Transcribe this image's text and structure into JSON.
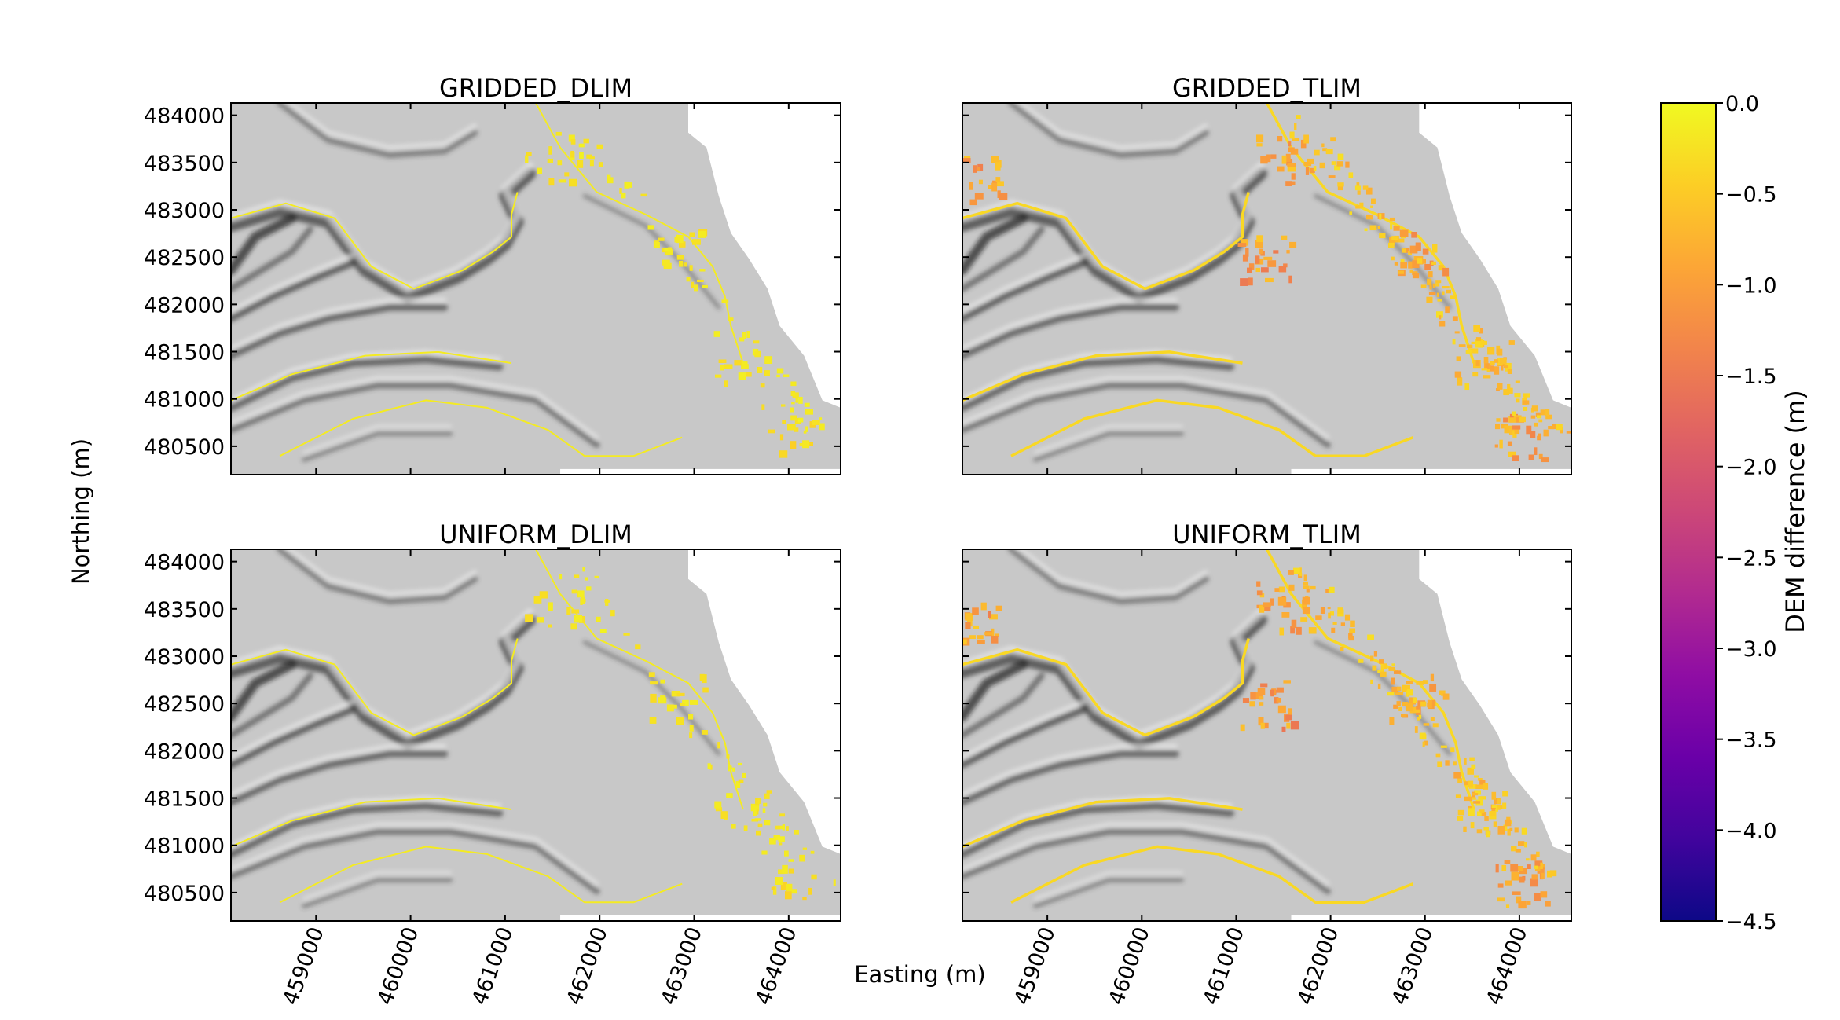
{
  "figure": {
    "xlabel": "Easting (m)",
    "ylabel": "Northing (m)",
    "colorbar": {
      "label": "DEM difference (m)",
      "range": [
        -4.5,
        0.0
      ],
      "ticks": [
        0.0,
        -0.5,
        -1.0,
        -1.5,
        -2.0,
        -2.5,
        -3.0,
        -3.5,
        -4.0,
        -4.5
      ],
      "tick_labels": [
        "0.0",
        "−0.5",
        "−1.0",
        "−1.5",
        "−2.0",
        "−2.5",
        "−3.0",
        "−3.5",
        "−4.0",
        "−4.5"
      ],
      "colormap": "plasma",
      "colors": [
        "#0d0887",
        "#41049d",
        "#6a00a8",
        "#8f0da4",
        "#b12a90",
        "#cc4778",
        "#e16462",
        "#f2844b",
        "#fca636",
        "#fcce25",
        "#f0f921"
      ]
    },
    "hillshade": {
      "background": "#c8c8c8",
      "dark_valley": "#3c3c3c",
      "no_data": "#ffffff"
    }
  },
  "chart_data": [
    {
      "type": "heatmap",
      "title": "GRIDDED_DLIM",
      "xlim": [
        458100,
        464550
      ],
      "ylim": [
        480200,
        484130
      ],
      "xticks": [
        459000,
        460000,
        461000,
        462000,
        463000,
        464000
      ],
      "yticks": [
        480500,
        481000,
        481500,
        482000,
        482500,
        483000,
        483500,
        484000
      ],
      "xtick_labels": [
        "459000",
        "460000",
        "461000",
        "462000",
        "463000",
        "464000"
      ],
      "ytick_labels": [
        "480500",
        "481000",
        "481500",
        "482000",
        "482500",
        "483000",
        "483500",
        "484000"
      ],
      "values": "DEM difference (m) over hillshade; mostly 0.0 to -0.5 along scarps",
      "hotspots": [
        {
          "x": 461500,
          "y": 483550,
          "value": -0.3
        },
        {
          "x": 462800,
          "y": 482600,
          "value": -0.3
        },
        {
          "x": 463500,
          "y": 481400,
          "value": -0.3
        },
        {
          "x": 464000,
          "y": 480700,
          "value": -0.4
        }
      ]
    },
    {
      "type": "heatmap",
      "title": "GRIDDED_TLIM",
      "xlim": [
        458100,
        464550
      ],
      "ylim": [
        480200,
        484130
      ],
      "xticks": [
        459000,
        460000,
        461000,
        462000,
        463000,
        464000
      ],
      "yticks": [
        480500,
        481000,
        481500,
        482000,
        482500,
        483000,
        483500,
        484000
      ],
      "xtick_labels": [
        "459000",
        "460000",
        "461000",
        "462000",
        "463000",
        "464000"
      ],
      "ytick_labels": [
        "480500",
        "481000",
        "481500",
        "482000",
        "482500",
        "483000",
        "483500",
        "484000"
      ],
      "values": "DEM difference (m) over hillshade; many -0.5 to -1.5 patches along scarps",
      "hotspots": [
        {
          "x": 458200,
          "y": 483350,
          "value": -1.3
        },
        {
          "x": 461500,
          "y": 483550,
          "value": -1.2
        },
        {
          "x": 461300,
          "y": 482500,
          "value": -1.4
        },
        {
          "x": 462900,
          "y": 482600,
          "value": -1.2
        },
        {
          "x": 463600,
          "y": 481400,
          "value": -0.8
        },
        {
          "x": 464000,
          "y": 480600,
          "value": -1.3
        }
      ]
    },
    {
      "type": "heatmap",
      "title": "UNIFORM_DLIM",
      "xlim": [
        458100,
        464550
      ],
      "ylim": [
        480200,
        484130
      ],
      "xticks": [
        459000,
        460000,
        461000,
        462000,
        463000,
        464000
      ],
      "yticks": [
        480500,
        481000,
        481500,
        482000,
        482500,
        483000,
        483500,
        484000
      ],
      "xtick_labels": [
        "459000",
        "460000",
        "461000",
        "462000",
        "463000",
        "464000"
      ],
      "ytick_labels": [
        "480500",
        "481000",
        "481500",
        "482000",
        "482500",
        "483000",
        "483500",
        "484000"
      ],
      "values": "DEM difference (m) over hillshade; mostly 0.0 to -0.5 along scarps",
      "hotspots": [
        {
          "x": 461500,
          "y": 483550,
          "value": -0.3
        },
        {
          "x": 462800,
          "y": 482600,
          "value": -0.3
        },
        {
          "x": 463500,
          "y": 481400,
          "value": -0.3
        },
        {
          "x": 464000,
          "y": 480700,
          "value": -0.4
        }
      ]
    },
    {
      "type": "heatmap",
      "title": "UNIFORM_TLIM",
      "xlim": [
        458100,
        464550
      ],
      "ylim": [
        480200,
        484130
      ],
      "xticks": [
        459000,
        460000,
        461000,
        462000,
        463000,
        464000
      ],
      "yticks": [
        480500,
        481000,
        481500,
        482000,
        482500,
        483000,
        483500,
        484000
      ],
      "xtick_labels": [
        "459000",
        "460000",
        "461000",
        "462000",
        "463000",
        "464000"
      ],
      "ytick_labels": [
        "480500",
        "481000",
        "481500",
        "482000",
        "482500",
        "483000",
        "483500",
        "484000"
      ],
      "values": "DEM difference (m) over hillshade; many -0.5 to -1.5 patches along scarps",
      "hotspots": [
        {
          "x": 458200,
          "y": 483350,
          "value": -1.3
        },
        {
          "x": 461500,
          "y": 483550,
          "value": -1.2
        },
        {
          "x": 461300,
          "y": 482500,
          "value": -1.4
        },
        {
          "x": 462900,
          "y": 482600,
          "value": -1.2
        },
        {
          "x": 463600,
          "y": 481400,
          "value": -0.8
        },
        {
          "x": 464000,
          "y": 480600,
          "value": -1.3
        }
      ]
    }
  ]
}
